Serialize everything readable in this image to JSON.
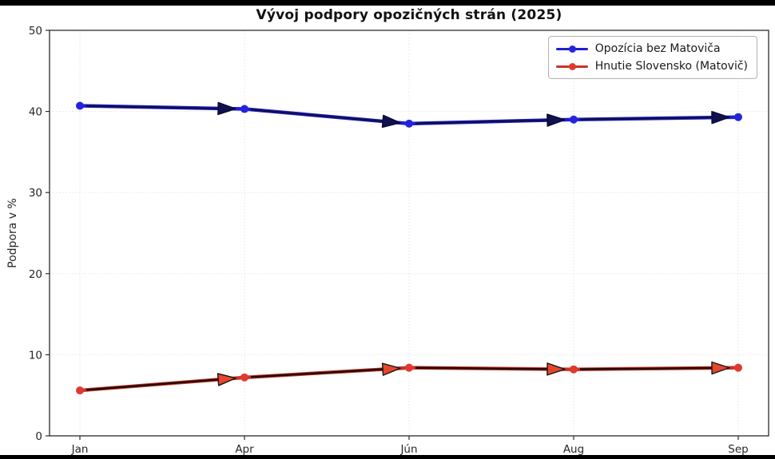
{
  "page": {
    "background": "#ffffff",
    "frame_bar_color": "#000000"
  },
  "chart_data": {
    "type": "line",
    "title": "Vývoj podpory opozičných strán (2025)",
    "ylabel": "Podpora v %",
    "xlabel": "",
    "categories": [
      "Jan",
      "Apr",
      "Jún",
      "Aug",
      "Sep"
    ],
    "ylim": [
      0,
      50
    ],
    "yticks": [
      0,
      10,
      20,
      30,
      40,
      50
    ],
    "grid": true,
    "legend_position": "top-right",
    "style": {
      "segment_arrows": true,
      "marker": "circle"
    },
    "series": [
      {
        "name": "Opozícia bez Matoviča",
        "values": [
          40.7,
          40.3,
          38.5,
          39.0,
          39.3
        ],
        "color": "#1f1fd0",
        "marker_color": "#2424e0",
        "arrow_shaft_color": "#10104f",
        "arrowhead_fill": "#10104f",
        "arrowhead_stroke": "#0a0a38"
      },
      {
        "name": "Hnutie Slovensko (Matovič)",
        "values": [
          5.6,
          7.2,
          8.4,
          8.2,
          8.4
        ],
        "color": "#c8342a",
        "marker_color": "#e03a2e",
        "arrow_shaft_color": "#230b09",
        "arrowhead_fill": "#e5472c",
        "arrowhead_stroke": "#141414"
      }
    ],
    "axis": {
      "tick_label_color": "#262626",
      "spine_color": "#2b2b2b",
      "grid_color": "#e9e3e3"
    }
  }
}
